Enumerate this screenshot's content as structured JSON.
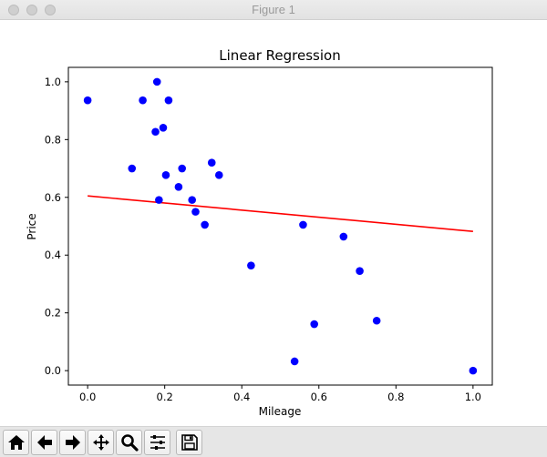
{
  "window": {
    "title": "Figure 1"
  },
  "toolbar": {
    "buttons": [
      {
        "name": "home-button",
        "icon": "home-icon",
        "tooltip": "Reset original view"
      },
      {
        "name": "back-button",
        "icon": "arrow-left-icon",
        "tooltip": "Back to previous view"
      },
      {
        "name": "forward-button",
        "icon": "arrow-right-icon",
        "tooltip": "Forward to next view"
      },
      {
        "name": "pan-button",
        "icon": "move-icon",
        "tooltip": "Pan axes"
      },
      {
        "name": "zoom-button",
        "icon": "magnifier-icon",
        "tooltip": "Zoom to rectangle"
      },
      {
        "name": "configure-subplots-button",
        "icon": "sliders-icon",
        "tooltip": "Configure subplots"
      },
      {
        "name": "save-button",
        "icon": "floppy-disk-icon",
        "tooltip": "Save the figure"
      }
    ]
  },
  "chart_data": {
    "type": "scatter",
    "title": "Linear Regression",
    "xlabel": "Mileage",
    "ylabel": "Price",
    "xlim": [
      -0.05,
      1.05
    ],
    "ylim": [
      -0.05,
      1.05
    ],
    "xticks": [
      "0.0",
      "0.2",
      "0.4",
      "0.6",
      "0.8",
      "1.0"
    ],
    "yticks": [
      "0.0",
      "0.2",
      "0.4",
      "0.6",
      "0.8",
      "1.0"
    ],
    "grid": false,
    "series": [
      {
        "type": "scatter",
        "color": "#0000ff",
        "points": [
          [
            0.0,
            0.936
          ],
          [
            0.115,
            0.7
          ],
          [
            0.143,
            0.936
          ],
          [
            0.176,
            0.827
          ],
          [
            0.18,
            1.0
          ],
          [
            0.185,
            0.591
          ],
          [
            0.196,
            0.841
          ],
          [
            0.203,
            0.677
          ],
          [
            0.21,
            0.936
          ],
          [
            0.236,
            0.636
          ],
          [
            0.245,
            0.7
          ],
          [
            0.271,
            0.591
          ],
          [
            0.28,
            0.55
          ],
          [
            0.304,
            0.505
          ],
          [
            0.322,
            0.72
          ],
          [
            0.341,
            0.677
          ],
          [
            0.424,
            0.364
          ],
          [
            0.537,
            0.032
          ],
          [
            0.559,
            0.505
          ],
          [
            0.588,
            0.161
          ],
          [
            0.664,
            0.464
          ],
          [
            0.706,
            0.345
          ],
          [
            0.75,
            0.173
          ],
          [
            1.0,
            0.0
          ]
        ]
      },
      {
        "type": "line",
        "color": "#ff0000",
        "points": [
          [
            0.0,
            0.605
          ],
          [
            1.0,
            0.482
          ]
        ]
      }
    ]
  }
}
